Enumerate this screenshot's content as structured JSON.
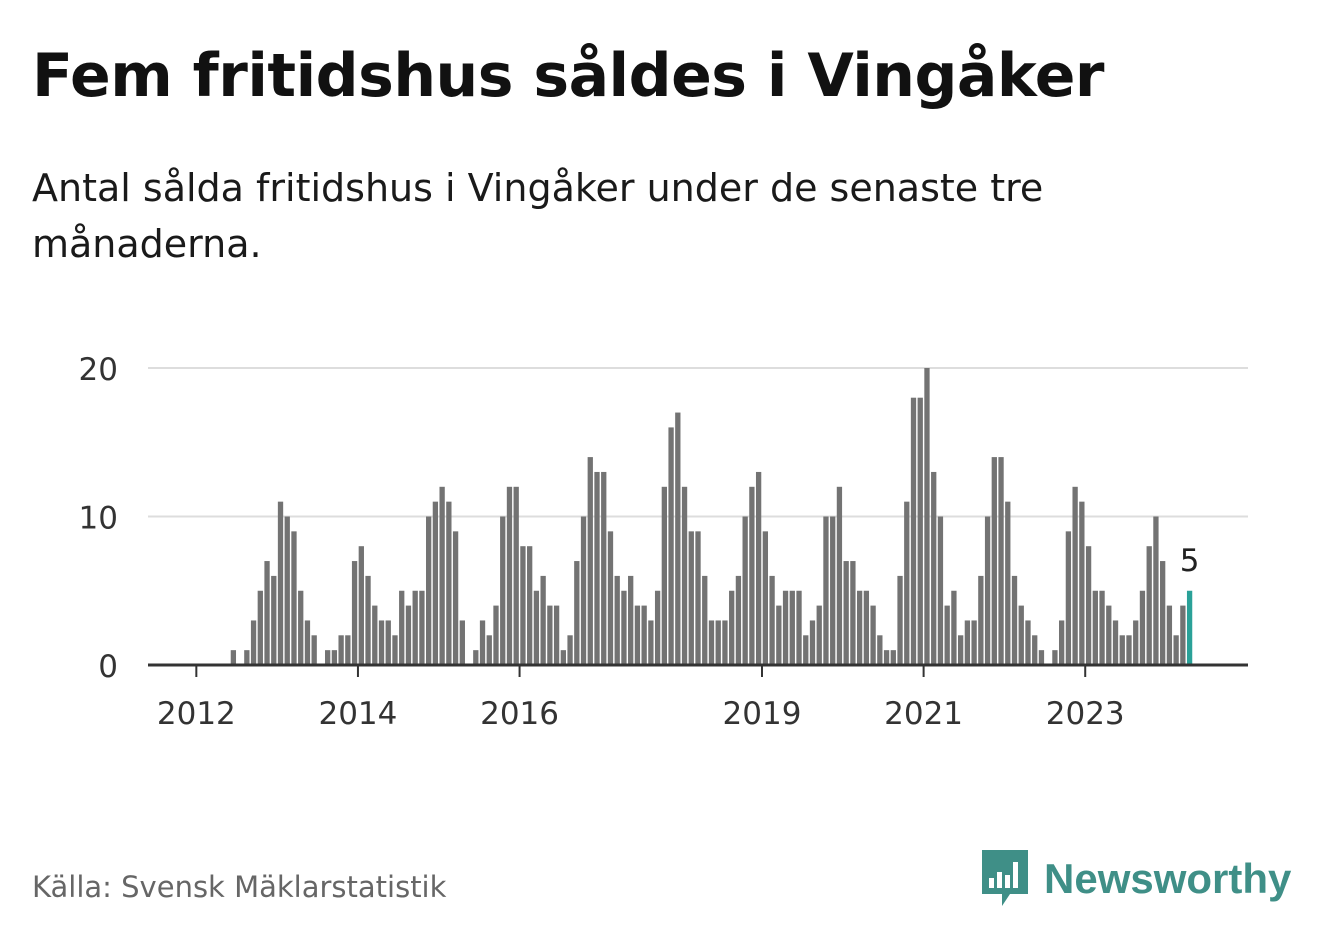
{
  "header": {
    "title": "Fem fritidshus såldes i Vingåker",
    "subtitle": "Antal sålda fritidshus i Vingåker under de senaste tre månaderna."
  },
  "footer": {
    "source": "Källa: Svensk Mäklarstatistik",
    "brand": "Newsworthy"
  },
  "colors": {
    "bar": "#737373",
    "highlight": "#2aa198",
    "grid": "#dddddd",
    "axis": "#333333",
    "brand": "#3f8f87"
  },
  "chart_data": {
    "type": "bar",
    "start_month": "2011-10",
    "x_tick_labels": [
      {
        "label": "2012",
        "month": "2012-01"
      },
      {
        "label": "2014",
        "month": "2014-01"
      },
      {
        "label": "2016",
        "month": "2016-01"
      },
      {
        "label": "2019",
        "month": "2019-01"
      },
      {
        "label": "2021",
        "month": "2021-01"
      },
      {
        "label": "2023",
        "month": "2023-01"
      }
    ],
    "y_ticks": [
      0,
      10,
      20
    ],
    "ylim": [
      0,
      20
    ],
    "grid": true,
    "values": [
      0,
      0,
      0,
      0,
      0,
      0,
      0,
      0,
      1,
      0,
      1,
      3,
      5,
      7,
      6,
      11,
      10,
      9,
      5,
      3,
      2,
      0,
      1,
      1,
      2,
      2,
      7,
      8,
      6,
      4,
      3,
      3,
      2,
      5,
      4,
      5,
      5,
      10,
      11,
      12,
      11,
      9,
      3,
      0,
      1,
      3,
      2,
      4,
      10,
      12,
      12,
      8,
      8,
      5,
      6,
      4,
      4,
      1,
      2,
      7,
      10,
      14,
      13,
      13,
      9,
      6,
      5,
      6,
      4,
      4,
      3,
      5,
      12,
      16,
      17,
      12,
      9,
      9,
      6,
      3,
      3,
      3,
      5,
      6,
      10,
      12,
      13,
      9,
      6,
      4,
      5,
      5,
      5,
      2,
      3,
      4,
      10,
      10,
      12,
      7,
      7,
      5,
      5,
      4,
      2,
      1,
      1,
      6,
      11,
      18,
      18,
      20,
      13,
      10,
      4,
      5,
      2,
      3,
      3,
      6,
      10,
      14,
      14,
      11,
      6,
      4,
      3,
      2,
      1,
      0,
      1,
      3,
      9,
      12,
      11,
      8,
      5,
      5,
      4,
      3,
      2,
      2,
      3,
      5,
      8,
      10,
      7,
      4,
      2,
      4,
      5
    ],
    "highlight_last": true,
    "last_value_label": "5"
  }
}
